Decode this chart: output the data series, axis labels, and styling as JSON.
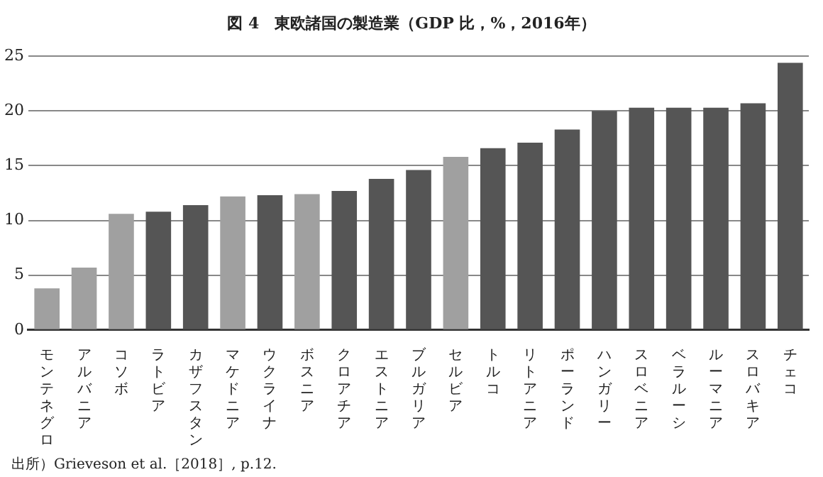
{
  "chart_data": {
    "type": "bar",
    "title": "図 4　東欧諸国の製造業（GDP 比，%，2016年）",
    "categories": [
      "モンテネグロ",
      "アルバニア",
      "コソボ",
      "ラトビア",
      "カザフスタン",
      "マケドニア",
      "ウクライナ",
      "ボスニア",
      "クロアチア",
      "エストニア",
      "ブルガリア",
      "セルビア",
      "トルコ",
      "リトアニア",
      "ポーランド",
      "ハンガリー",
      "スロベニア",
      "ベラルーシ",
      "ルーマニア",
      "スロバキア",
      "チェコ"
    ],
    "values": [
      3.8,
      5.7,
      10.6,
      10.8,
      11.4,
      12.2,
      12.3,
      12.4,
      12.7,
      13.8,
      14.6,
      15.8,
      16.6,
      17.1,
      18.3,
      20.0,
      20.3,
      20.3,
      20.3,
      20.7,
      24.4
    ],
    "colors": [
      "#a0a0a0",
      "#a0a0a0",
      "#a0a0a0",
      "#555555",
      "#555555",
      "#a0a0a0",
      "#555555",
      "#a0a0a0",
      "#555555",
      "#555555",
      "#555555",
      "#a0a0a0",
      "#555555",
      "#555555",
      "#555555",
      "#555555",
      "#555555",
      "#555555",
      "#555555",
      "#555555",
      "#555555"
    ],
    "ylim": [
      0,
      25
    ],
    "yticks": [
      0,
      5,
      10,
      15,
      20,
      25
    ],
    "grid": "y",
    "annotations": [
      "出所）Grieveson et al.［2018］, p.12."
    ]
  }
}
